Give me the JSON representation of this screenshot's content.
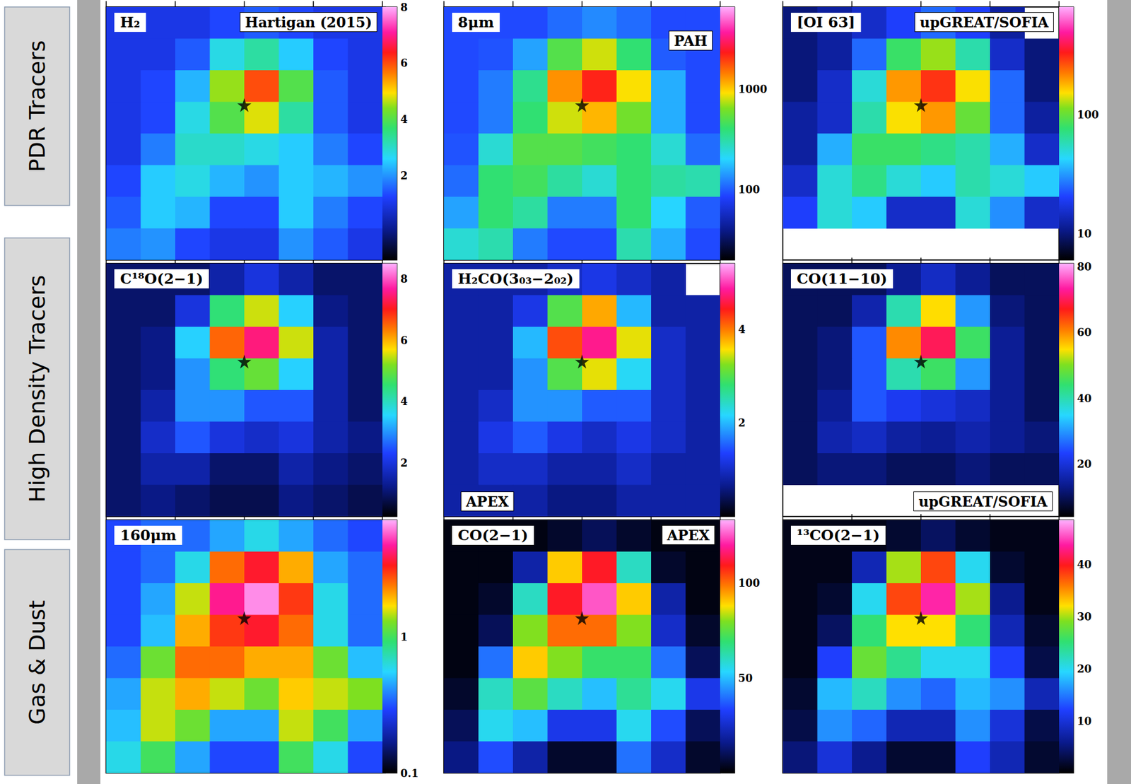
{
  "row_labels": [
    "PDR Tracers",
    "High Density Tracers",
    "Gas & Dust"
  ],
  "chart_data": [
    {
      "type": "heatmap",
      "title": "H₂",
      "annotations": [
        "Hartigan (2015)"
      ],
      "xlim": [
        0,
        8
      ],
      "ylim": [
        0,
        8
      ],
      "xticks": [
        0,
        2,
        4,
        6,
        8
      ],
      "yticks": [
        0,
        2,
        4,
        6,
        8
      ],
      "tick_labels": false,
      "star": [
        4.0,
        3.1
      ],
      "marker": "star",
      "colorbar": {
        "range": [
          -1,
          8
        ],
        "ticks": [
          2,
          4,
          6,
          8
        ],
        "log": false
      },
      "cells": [
        [
          1,
          1,
          1,
          1.3,
          1.5,
          1.3,
          1,
          1
        ],
        [
          1,
          1,
          1.5,
          2.8,
          3.3,
          2.5,
          1.3,
          1
        ],
        [
          1,
          1.3,
          2.3,
          4.5,
          6,
          4,
          1.5,
          1
        ],
        [
          1,
          1.3,
          2.8,
          4,
          4.8,
          3.3,
          1.5,
          1
        ],
        [
          1,
          1.8,
          3,
          3,
          2.8,
          2.5,
          1.8,
          1.3
        ],
        [
          1.3,
          2.5,
          2.8,
          2.3,
          2,
          2.5,
          2.3,
          2
        ],
        [
          1.5,
          2.5,
          2.3,
          1.3,
          1.3,
          2.5,
          1.8,
          1.3
        ],
        [
          1.8,
          2,
          1.3,
          1,
          1,
          2,
          1.5,
          1
        ]
      ]
    },
    {
      "type": "heatmap",
      "title": "8μm",
      "annotations": [
        "PAH"
      ],
      "xlim": [
        0,
        8
      ],
      "ylim": [
        0,
        8
      ],
      "xticks": [
        0,
        2,
        4,
        6,
        8
      ],
      "yticks": [
        0,
        2,
        4,
        6,
        8
      ],
      "tick_labels": false,
      "star": [
        4.0,
        3.1
      ],
      "marker": "star",
      "colorbar": {
        "range": [
          20,
          6500
        ],
        "ticks": [
          100,
          1000
        ],
        "log": true
      },
      "cells": [
        [
          90,
          90,
          90,
          110,
          130,
          110,
          90,
          90
        ],
        [
          90,
          95,
          150,
          500,
          800,
          400,
          100,
          90
        ],
        [
          90,
          120,
          350,
          1300,
          2200,
          900,
          160,
          90
        ],
        [
          90,
          120,
          400,
          800,
          1100,
          600,
          160,
          90
        ],
        [
          95,
          250,
          500,
          500,
          450,
          400,
          250,
          110
        ],
        [
          110,
          400,
          450,
          320,
          250,
          400,
          320,
          300
        ],
        [
          150,
          400,
          320,
          120,
          120,
          400,
          200,
          100
        ],
        [
          250,
          300,
          120,
          90,
          90,
          300,
          160,
          90
        ]
      ]
    },
    {
      "type": "heatmap",
      "title": "[OI 63]",
      "annotations": [
        "upGREAT/SOFIA"
      ],
      "xlim": [
        0,
        8
      ],
      "ylim": [
        0,
        8
      ],
      "xticks": [
        0,
        2,
        4,
        6,
        8
      ],
      "yticks": [
        0,
        2,
        4,
        6,
        8
      ],
      "tick_labels": false,
      "star": [
        4.0,
        3.1
      ],
      "marker": "star",
      "colorbar": {
        "range": [
          6,
          800
        ],
        "ticks": [
          10,
          100
        ],
        "log": true
      },
      "cells": [
        [
          10,
          12,
          15,
          20,
          25,
          20,
          12,
          null
        ],
        [
          10,
          12,
          25,
          80,
          120,
          60,
          15,
          10
        ],
        [
          10,
          15,
          50,
          200,
          300,
          150,
          25,
          10
        ],
        [
          12,
          15,
          60,
          150,
          200,
          100,
          25,
          12
        ],
        [
          12,
          35,
          80,
          80,
          70,
          60,
          35,
          15
        ],
        [
          15,
          50,
          70,
          50,
          40,
          60,
          50,
          40
        ],
        [
          20,
          50,
          40,
          15,
          15,
          50,
          30,
          15
        ],
        [
          null,
          null,
          null,
          null,
          null,
          null,
          null,
          null
        ]
      ]
    },
    {
      "type": "heatmap",
      "title": "C¹⁸O(2−1)",
      "annotations": [],
      "xlim": [
        0,
        8
      ],
      "ylim": [
        0,
        8
      ],
      "xticks": [
        0,
        2,
        4,
        6,
        8
      ],
      "yticks": [
        0,
        2,
        4,
        6,
        8
      ],
      "tick_labels": false,
      "star": [
        4.0,
        3.1
      ],
      "marker": "star",
      "colorbar": {
        "range": [
          0.25,
          8.5
        ],
        "ticks": [
          2,
          4,
          6,
          8
        ],
        "log": false
      },
      "cells": [
        [
          1,
          1,
          1,
          1.5,
          2,
          1.5,
          1,
          1
        ],
        [
          1,
          1,
          2,
          4.5,
          5.5,
          3.5,
          1.2,
          1
        ],
        [
          1,
          1.2,
          3.5,
          6.5,
          7.5,
          5.5,
          1.5,
          1
        ],
        [
          1,
          1.2,
          3,
          4.5,
          5,
          3.5,
          1.5,
          1
        ],
        [
          1,
          1.5,
          3,
          3,
          2.5,
          2.5,
          1.5,
          1
        ],
        [
          1,
          1.8,
          2.5,
          2,
          1.8,
          2,
          1.5,
          1.2
        ],
        [
          1,
          1.5,
          1.5,
          1,
          1,
          1.5,
          1.2,
          1
        ],
        [
          1,
          1.2,
          1,
          0.8,
          0.8,
          1.2,
          1,
          0.8
        ]
      ]
    },
    {
      "type": "heatmap",
      "title": "H₂CO(3₀₃−2₀₂)",
      "annotations": [
        "APEX"
      ],
      "xlim": [
        0,
        8
      ],
      "ylim": [
        0,
        8
      ],
      "xticks": [
        0,
        2,
        4,
        6,
        8
      ],
      "yticks": [
        0,
        2,
        4,
        6,
        8
      ],
      "tick_labels": false,
      "star": [
        4.0,
        3.1
      ],
      "marker": "star",
      "colorbar": {
        "range": [
          0,
          5.4
        ],
        "ticks": [
          2,
          4
        ],
        "log": false
      },
      "cells": [
        [
          0.8,
          0.8,
          0.8,
          1,
          1.2,
          1,
          0.8,
          null
        ],
        [
          0.8,
          0.8,
          1.2,
          3,
          3.8,
          2,
          0.8,
          0.8
        ],
        [
          0.8,
          0.8,
          2,
          4.2,
          4.8,
          3.5,
          1,
          0.8
        ],
        [
          0.8,
          0.8,
          1.8,
          3,
          3.5,
          2.2,
          1,
          0.8
        ],
        [
          0.8,
          1,
          1.8,
          1.8,
          1.5,
          1.5,
          1,
          0.8
        ],
        [
          0.8,
          1.2,
          1.5,
          1.2,
          1,
          1.2,
          1,
          0.8
        ],
        [
          0.8,
          1,
          1,
          0.8,
          0.8,
          1,
          0.8,
          0.8
        ],
        [
          0.8,
          0.8,
          0.8,
          0.6,
          0.6,
          0.8,
          0.8,
          0.8
        ]
      ]
    },
    {
      "type": "heatmap",
      "title": "CO(11−10)",
      "annotations": [
        "upGREAT/SOFIA"
      ],
      "xlim": [
        0,
        8
      ],
      "ylim": [
        0,
        8
      ],
      "xticks": [
        0,
        2,
        4,
        6,
        8
      ],
      "yticks": [
        0,
        2,
        4,
        6,
        8
      ],
      "tick_labels": false,
      "star": [
        4.0,
        3.1
      ],
      "marker": "star",
      "colorbar": {
        "range": [
          4,
          81
        ],
        "ticks": [
          20,
          40,
          60,
          80
        ],
        "log": false
      },
      "cells": [
        [
          10,
          10,
          10,
          14,
          18,
          14,
          10,
          10
        ],
        [
          10,
          10,
          16,
          40,
          55,
          30,
          12,
          10
        ],
        [
          10,
          12,
          25,
          60,
          70,
          45,
          14,
          10
        ],
        [
          10,
          12,
          25,
          40,
          45,
          30,
          14,
          10
        ],
        [
          10,
          14,
          25,
          22,
          20,
          18,
          14,
          10
        ],
        [
          10,
          16,
          18,
          15,
          14,
          16,
          14,
          12
        ],
        [
          10,
          12,
          12,
          10,
          10,
          12,
          10,
          10
        ],
        [
          null,
          null,
          null,
          null,
          null,
          null,
          null,
          null
        ]
      ]
    },
    {
      "type": "heatmap",
      "title": "160μm",
      "annotations": [],
      "xlim": [
        0,
        8
      ],
      "ylim": [
        0,
        8
      ],
      "xticks": [
        0,
        2,
        4,
        6,
        8
      ],
      "yticks": [
        0,
        2,
        4,
        6,
        8
      ],
      "tick_labels": false,
      "star": [
        4.0,
        3.1
      ],
      "marker": "star",
      "colorbar": {
        "range": [
          0.1,
          7.2
        ],
        "ticks": [
          0.1,
          1
        ],
        "log": true
      },
      "cells": [
        [
          0.3,
          0.35,
          0.35,
          0.45,
          0.6,
          0.45,
          0.35,
          0.3
        ],
        [
          0.3,
          0.35,
          0.6,
          2.5,
          3.5,
          2,
          0.45,
          0.35
        ],
        [
          0.3,
          0.45,
          1.5,
          4.5,
          6.5,
          3,
          0.6,
          0.35
        ],
        [
          0.3,
          0.5,
          2,
          3,
          3.5,
          2.5,
          0.6,
          0.35
        ],
        [
          0.35,
          1.2,
          2.5,
          2.5,
          2,
          2,
          1.2,
          0.5
        ],
        [
          0.45,
          1.5,
          2,
          1.5,
          1.2,
          1.8,
          1.5,
          1.3
        ],
        [
          0.5,
          1.5,
          1.2,
          0.45,
          0.45,
          1.5,
          1,
          0.45
        ],
        [
          0.6,
          1,
          0.45,
          0.3,
          0.3,
          1,
          0.6,
          0.3
        ]
      ]
    },
    {
      "type": "heatmap",
      "title": "CO(2−1)",
      "annotations": [
        "APEX"
      ],
      "xlim": [
        0,
        8
      ],
      "ylim": [
        0,
        8
      ],
      "xticks": [
        0,
        2,
        4,
        6,
        8
      ],
      "yticks": [
        0,
        2,
        4,
        6,
        8
      ],
      "tick_labels": false,
      "star": [
        4.0,
        3.1
      ],
      "marker": "star",
      "colorbar": {
        "range": [
          0,
          133
        ],
        "ticks": [
          50,
          100
        ],
        "log": false
      },
      "cells": [
        [
          2,
          2,
          2,
          5,
          10,
          5,
          2,
          2
        ],
        [
          2,
          2,
          20,
          90,
          110,
          60,
          5,
          2
        ],
        [
          2,
          5,
          60,
          110,
          125,
          90,
          20,
          2
        ],
        [
          2,
          10,
          80,
          100,
          100,
          80,
          25,
          5
        ],
        [
          2,
          40,
          90,
          80,
          70,
          70,
          40,
          10
        ],
        [
          5,
          60,
          75,
          60,
          50,
          65,
          55,
          30
        ],
        [
          10,
          55,
          50,
          30,
          30,
          55,
          35,
          10
        ],
        [
          15,
          35,
          20,
          5,
          5,
          40,
          25,
          5
        ]
      ]
    },
    {
      "type": "heatmap",
      "title": "¹³CO(2−1)",
      "annotations": [],
      "xlim": [
        0,
        8
      ],
      "ylim": [
        0,
        8
      ],
      "xticks": [
        0,
        2,
        4,
        6,
        8
      ],
      "yticks": [
        0,
        2,
        4,
        6,
        8
      ],
      "tick_labels": false,
      "star": [
        4.0,
        3.1
      ],
      "marker": "star",
      "colorbar": {
        "range": [
          0,
          48.5
        ],
        "ticks": [
          10,
          20,
          30,
          40
        ],
        "log": false
      },
      "cells": [
        [
          1,
          1,
          1,
          2,
          4,
          2,
          1,
          1
        ],
        [
          1,
          1,
          8,
          30,
          38,
          20,
          2,
          1
        ],
        [
          1,
          2,
          20,
          38,
          44,
          30,
          6,
          1
        ],
        [
          1,
          4,
          25,
          32,
          32,
          25,
          8,
          2
        ],
        [
          1,
          12,
          28,
          24,
          20,
          20,
          12,
          3
        ],
        [
          2,
          18,
          22,
          16,
          14,
          18,
          16,
          8
        ],
        [
          3,
          16,
          14,
          8,
          8,
          16,
          10,
          3
        ],
        [
          5,
          10,
          6,
          2,
          2,
          12,
          8,
          2
        ]
      ]
    }
  ]
}
